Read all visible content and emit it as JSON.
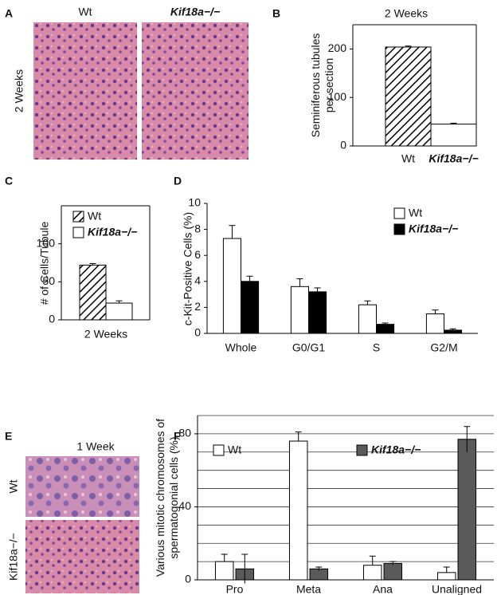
{
  "panel_labels": [
    "A",
    "B",
    "C",
    "D",
    "E",
    "F"
  ],
  "image_panels": [
    {
      "column_labels": [
        "Wt",
        "Kif18a−/−"
      ],
      "row_label": "2 Weeks"
    },
    {
      "title": "1 Week",
      "row_labels": [
        "Wt",
        "Kif18a−/−"
      ]
    }
  ],
  "chart_data": [
    {
      "type": "bar",
      "title": "2 Weeks",
      "ylabel": "Seminiferous tubules per section",
      "categories": [
        "Wt",
        "Kif18a−/−"
      ],
      "values": [
        204,
        45
      ],
      "errors": [
        2,
        2
      ],
      "fills": [
        "hatch",
        "#ffffff"
      ],
      "ylim": [
        0,
        250
      ],
      "yticks": [
        0,
        100,
        200
      ]
    },
    {
      "type": "bar",
      "ylabel": "# of Cells/Tubule",
      "categories": [
        "2 Weeks"
      ],
      "series": [
        {
          "name": "Wt",
          "fill": "hatch",
          "values": [
            72
          ],
          "errors": [
            2
          ]
        },
        {
          "name": "Kif18a−/−",
          "fill": "#ffffff",
          "values": [
            22
          ],
          "errors": [
            3
          ]
        }
      ],
      "ylim": [
        0,
        150
      ],
      "yticks": [
        0,
        50,
        100
      ],
      "legend": "upper left"
    },
    {
      "type": "bar",
      "ylabel": "c-Kit-Positive Cells (%)",
      "categories": [
        "Whole",
        "G0/G1",
        "S",
        "G2/M"
      ],
      "series": [
        {
          "name": "Wt",
          "fill": "#ffffff",
          "values": [
            7.3,
            3.6,
            2.2,
            1.5
          ],
          "errors": [
            1.0,
            0.6,
            0.3,
            0.3
          ]
        },
        {
          "name": "Kif18a−/−",
          "fill": "#000000",
          "values": [
            4.0,
            3.2,
            0.7,
            0.25
          ],
          "errors": [
            0.4,
            0.3,
            0.1,
            0.1
          ]
        }
      ],
      "ylim": [
        0,
        10
      ],
      "yticks": [
        0,
        2,
        4,
        6,
        8,
        10
      ],
      "legend": "upper right"
    },
    {
      "type": "bar",
      "ylabel": "Various mitotic chromosomes of spermatogonial cells (%)",
      "categories": [
        "Pro",
        "Meta",
        "Ana",
        "Unaligned"
      ],
      "series": [
        {
          "name": "Wt",
          "fill": "#ffffff",
          "values": [
            10,
            76,
            8,
            4
          ],
          "errors": [
            4,
            5,
            5,
            3
          ]
        },
        {
          "name": "Kif18a−/−",
          "fill": "#5a5a5a",
          "values": [
            6,
            6,
            9,
            77
          ],
          "errors": [
            8,
            1,
            1,
            7
          ]
        }
      ],
      "ylim": [
        0,
        90
      ],
      "yticks": [
        0,
        40,
        80
      ],
      "grid_lines": [
        10,
        20,
        30,
        40,
        50,
        60,
        70,
        80,
        90
      ],
      "legend": "top"
    }
  ]
}
